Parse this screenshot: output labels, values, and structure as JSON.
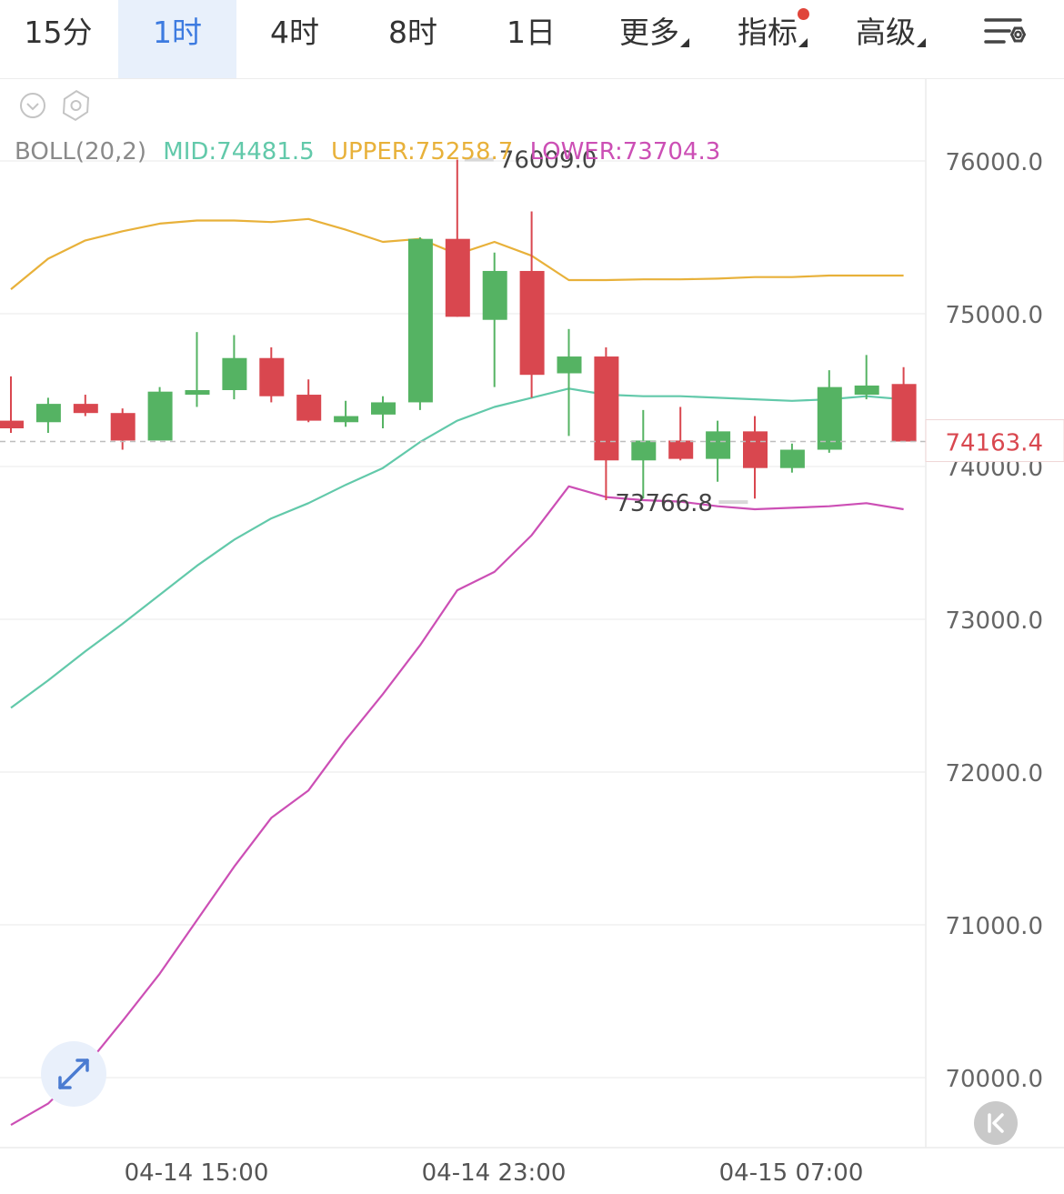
{
  "tabs": [
    {
      "label": "15分",
      "active": false,
      "has_dropdown": false
    },
    {
      "label": "1时",
      "active": true,
      "has_dropdown": false
    },
    {
      "label": "4时",
      "active": false,
      "has_dropdown": false
    },
    {
      "label": "8时",
      "active": false,
      "has_dropdown": false
    },
    {
      "label": "1日",
      "active": false,
      "has_dropdown": false
    },
    {
      "label": "更多",
      "active": false,
      "has_dropdown": true
    },
    {
      "label": "指标",
      "active": false,
      "has_dropdown": true,
      "badge": true
    },
    {
      "label": "高级",
      "active": false,
      "has_dropdown": true
    }
  ],
  "icons": {
    "settings": "chart-settings-icon",
    "collapse": "chevron-down-circle-icon",
    "indicator": "hexagon-gear-icon",
    "expand": "expand-arrows-icon",
    "back": "scroll-to-latest-icon"
  },
  "colors": {
    "up": "#55b363",
    "down": "#d9474f",
    "mid": "#62c9aa",
    "upper": "#e8b13a",
    "lower": "#cc4fb5",
    "accent": "#3d7be0"
  },
  "indicator": {
    "name": "BOLL(20,2)",
    "mid_text": "MID:74481.5",
    "upper_text": "UPPER:75258.7",
    "lower_text": "LOWER:73704.3"
  },
  "price_axis": [
    "76000.0",
    "75000.0",
    "74000.0",
    "73000.0",
    "72000.0",
    "71000.0",
    "70000.0"
  ],
  "time_axis": [
    "04-14 15:00",
    "04-14 23:00",
    "04-15 07:00"
  ],
  "current_price": "74163.4",
  "high_label": "76009.0",
  "low_label": "73766.8",
  "chart_data": {
    "type": "candlestick",
    "ylim": [
      69800,
      76500
    ],
    "candles": [
      {
        "o": 74300,
        "c": 74250,
        "h": 74590,
        "l": 74220
      },
      {
        "o": 74290,
        "c": 74410,
        "h": 74450,
        "l": 74220
      },
      {
        "o": 74410,
        "c": 74350,
        "h": 74470,
        "l": 74330
      },
      {
        "o": 74350,
        "c": 74170,
        "h": 74380,
        "l": 74110
      },
      {
        "o": 74170,
        "c": 74490,
        "h": 74520,
        "l": 74170
      },
      {
        "o": 74470,
        "c": 74500,
        "h": 74880,
        "l": 74390
      },
      {
        "o": 74500,
        "c": 74710,
        "h": 74860,
        "l": 74440
      },
      {
        "o": 74710,
        "c": 74460,
        "h": 74780,
        "l": 74420
      },
      {
        "o": 74470,
        "c": 74300,
        "h": 74570,
        "l": 74290
      },
      {
        "o": 74290,
        "c": 74330,
        "h": 74430,
        "l": 74260
      },
      {
        "o": 74340,
        "c": 74420,
        "h": 74460,
        "l": 74250
      },
      {
        "o": 74420,
        "c": 75490,
        "h": 75500,
        "l": 74370
      },
      {
        "o": 75490,
        "c": 74980,
        "h": 76009,
        "l": 74980
      },
      {
        "o": 74960,
        "c": 75280,
        "h": 75400,
        "l": 74520
      },
      {
        "o": 75280,
        "c": 74600,
        "h": 75670,
        "l": 74450
      },
      {
        "o": 74610,
        "c": 74720,
        "h": 74900,
        "l": 74200
      },
      {
        "o": 74720,
        "c": 74040,
        "h": 74780,
        "l": 73780
      },
      {
        "o": 74040,
        "c": 74170,
        "h": 74370,
        "l": 73790
      },
      {
        "o": 74170,
        "c": 74050,
        "h": 74390,
        "l": 74040
      },
      {
        "o": 74050,
        "c": 74230,
        "h": 74300,
        "l": 73900
      },
      {
        "o": 74230,
        "c": 73990,
        "h": 74330,
        "l": 73790
      },
      {
        "o": 73990,
        "c": 74110,
        "h": 74150,
        "l": 73960
      },
      {
        "o": 74110,
        "c": 74520,
        "h": 74630,
        "l": 74090
      },
      {
        "o": 74470,
        "c": 74530,
        "h": 74730,
        "l": 74440
      },
      {
        "o": 74540,
        "c": 74163.4,
        "h": 74650,
        "l": 74163.4
      }
    ],
    "boll_upper": [
      75160,
      75360,
      75480,
      75540,
      75590,
      75610,
      75610,
      75600,
      75620,
      75550,
      75470,
      75490,
      75390,
      75470,
      75380,
      75220,
      75220,
      75225,
      75225,
      75230,
      75240,
      75240,
      75250,
      75250,
      75250
    ],
    "boll_mid": [
      72420,
      72600,
      72790,
      72970,
      73160,
      73350,
      73520,
      73660,
      73760,
      73880,
      73990,
      74160,
      74300,
      74390,
      74450,
      74510,
      74470,
      74460,
      74460,
      74450,
      74440,
      74430,
      74440,
      74460,
      74440
    ],
    "boll_lower": [
      69690,
      69830,
      70070,
      70370,
      70680,
      71030,
      71380,
      71700,
      71880,
      72210,
      72510,
      72830,
      73190,
      73310,
      73550,
      73870,
      73800,
      73780,
      73770,
      73740,
      73720,
      73730,
      73740,
      73760,
      73720
    ]
  }
}
